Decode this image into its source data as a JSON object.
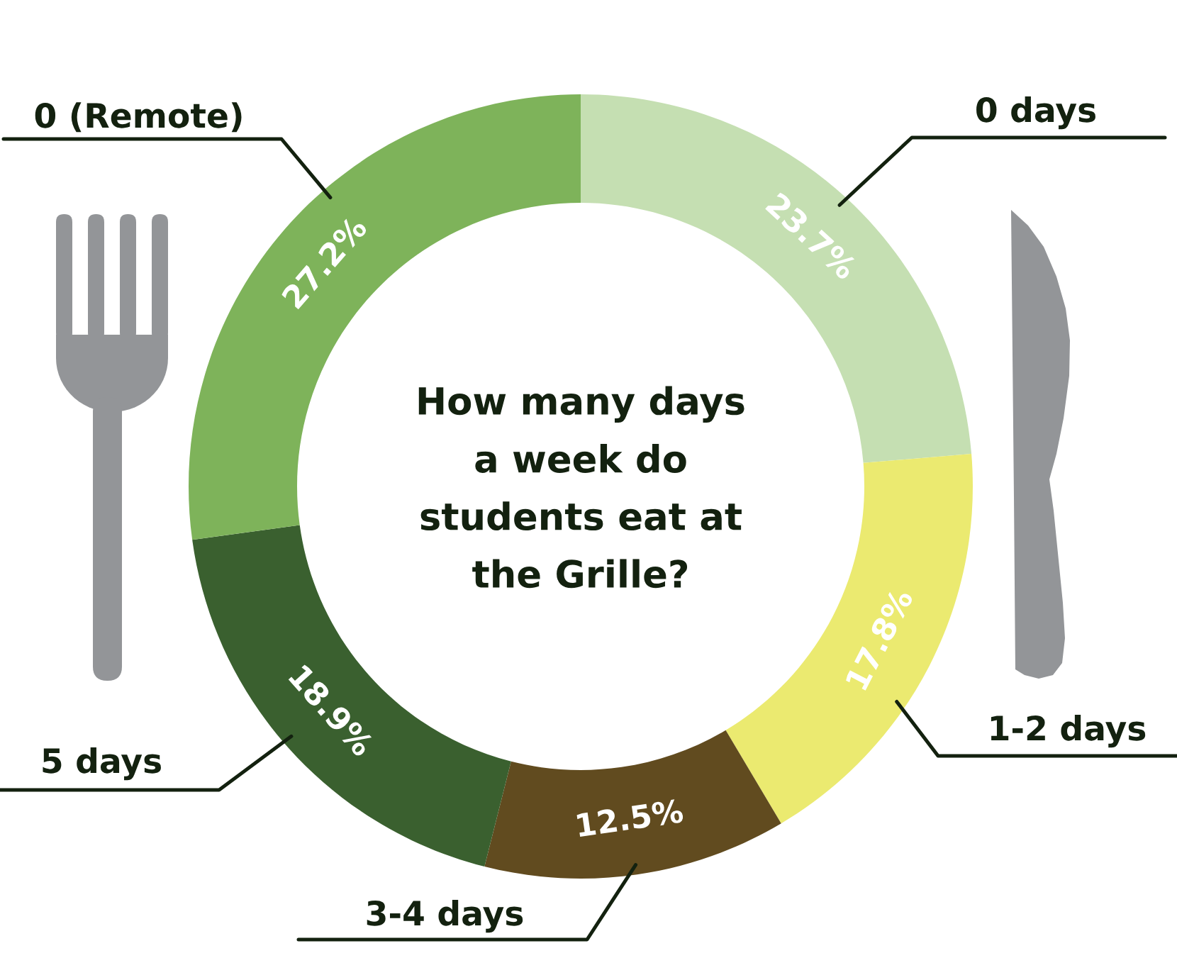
{
  "chart_data": {
    "type": "donut",
    "title": "How many days\na week do\nstudents eat at\nthe Grille?",
    "categories": [
      "0 days",
      "1-2 days",
      "3-4 days",
      "5 days",
      "0 (Remote)"
    ],
    "values": [
      23.7,
      17.8,
      12.5,
      18.9,
      27.2
    ],
    "value_labels": [
      "23.7%",
      "17.8%",
      "12.5%",
      "18.9%",
      "27.2%"
    ],
    "colors": [
      "#c5dfb2",
      "#ebea70",
      "#614b1f",
      "#3a602f",
      "#7eb35a"
    ]
  }
}
